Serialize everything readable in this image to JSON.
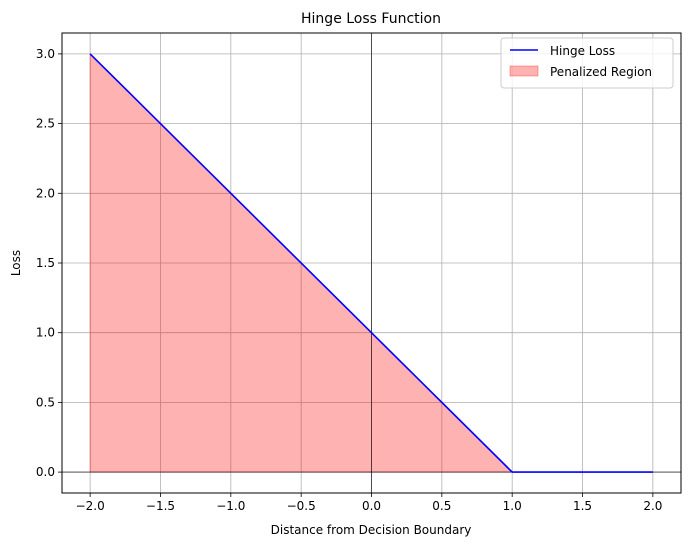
{
  "chart_data": {
    "type": "line",
    "title": "Hinge Loss Function",
    "xlabel": "Distance from Decision Boundary",
    "ylabel": "Loss",
    "xlim": [
      -2.2,
      2.2
    ],
    "ylim": [
      -0.15,
      3.15
    ],
    "x_ticks": [
      -2.0,
      -1.5,
      -1.0,
      -0.5,
      0.0,
      0.5,
      1.0,
      1.5,
      2.0
    ],
    "x_tick_labels": [
      "−2.0",
      "−1.5",
      "−1.0",
      "−0.5",
      "0.0",
      "0.5",
      "1.0",
      "1.5",
      "2.0"
    ],
    "y_ticks": [
      0.0,
      0.5,
      1.0,
      1.5,
      2.0,
      2.5,
      3.0
    ],
    "y_tick_labels": [
      "0.0",
      "0.5",
      "1.0",
      "1.5",
      "2.0",
      "2.5",
      "3.0"
    ],
    "grid": true,
    "reference_lines": {
      "x": 0,
      "y": 0
    },
    "legend_position": "top-right",
    "series": [
      {
        "name": "Hinge Loss",
        "kind": "line",
        "color": "#0000ff",
        "x": [
          -2.0,
          1.0,
          2.0
        ],
        "y": [
          3.0,
          0.0,
          0.0
        ]
      },
      {
        "name": "Penalized Region",
        "kind": "area",
        "color": "#ff0000",
        "opacity": 0.3,
        "x": [
          -2.0,
          1.0
        ],
        "y": [
          3.0,
          0.0
        ],
        "baseline": 0
      }
    ]
  }
}
